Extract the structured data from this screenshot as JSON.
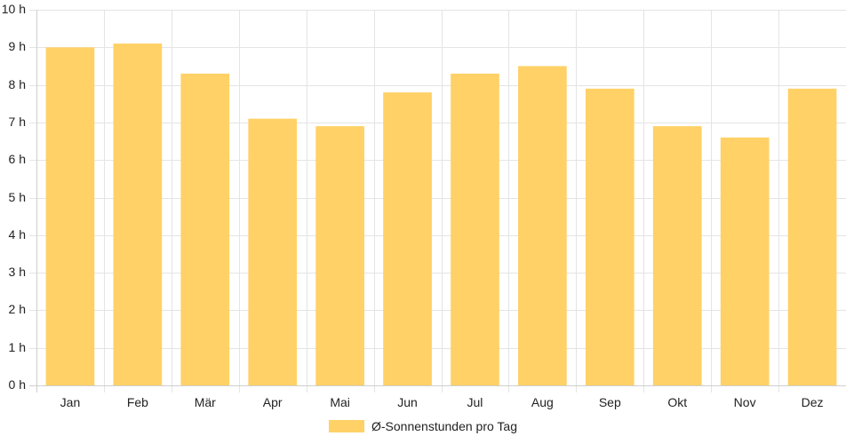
{
  "chart_data": {
    "type": "bar",
    "categories": [
      "Jan",
      "Feb",
      "Mär",
      "Apr",
      "Mai",
      "Jun",
      "Jul",
      "Aug",
      "Sep",
      "Okt",
      "Nov",
      "Dez"
    ],
    "series": [
      {
        "name": "Ø-Sonnenstunden pro Tag",
        "values": [
          9.0,
          9.1,
          8.3,
          7.1,
          6.9,
          7.8,
          8.3,
          8.5,
          7.9,
          6.9,
          6.6,
          7.9
        ]
      }
    ],
    "ylim": [
      0,
      10
    ],
    "yticks": [
      0,
      1,
      2,
      3,
      4,
      5,
      6,
      7,
      8,
      9,
      10
    ],
    "ytick_suffix": " h",
    "grid": true,
    "legend_position": "bottom-center",
    "colors": {
      "bar": "#FFD166",
      "grid": "#e4e4e4",
      "axis": "#cfcfcf"
    }
  }
}
